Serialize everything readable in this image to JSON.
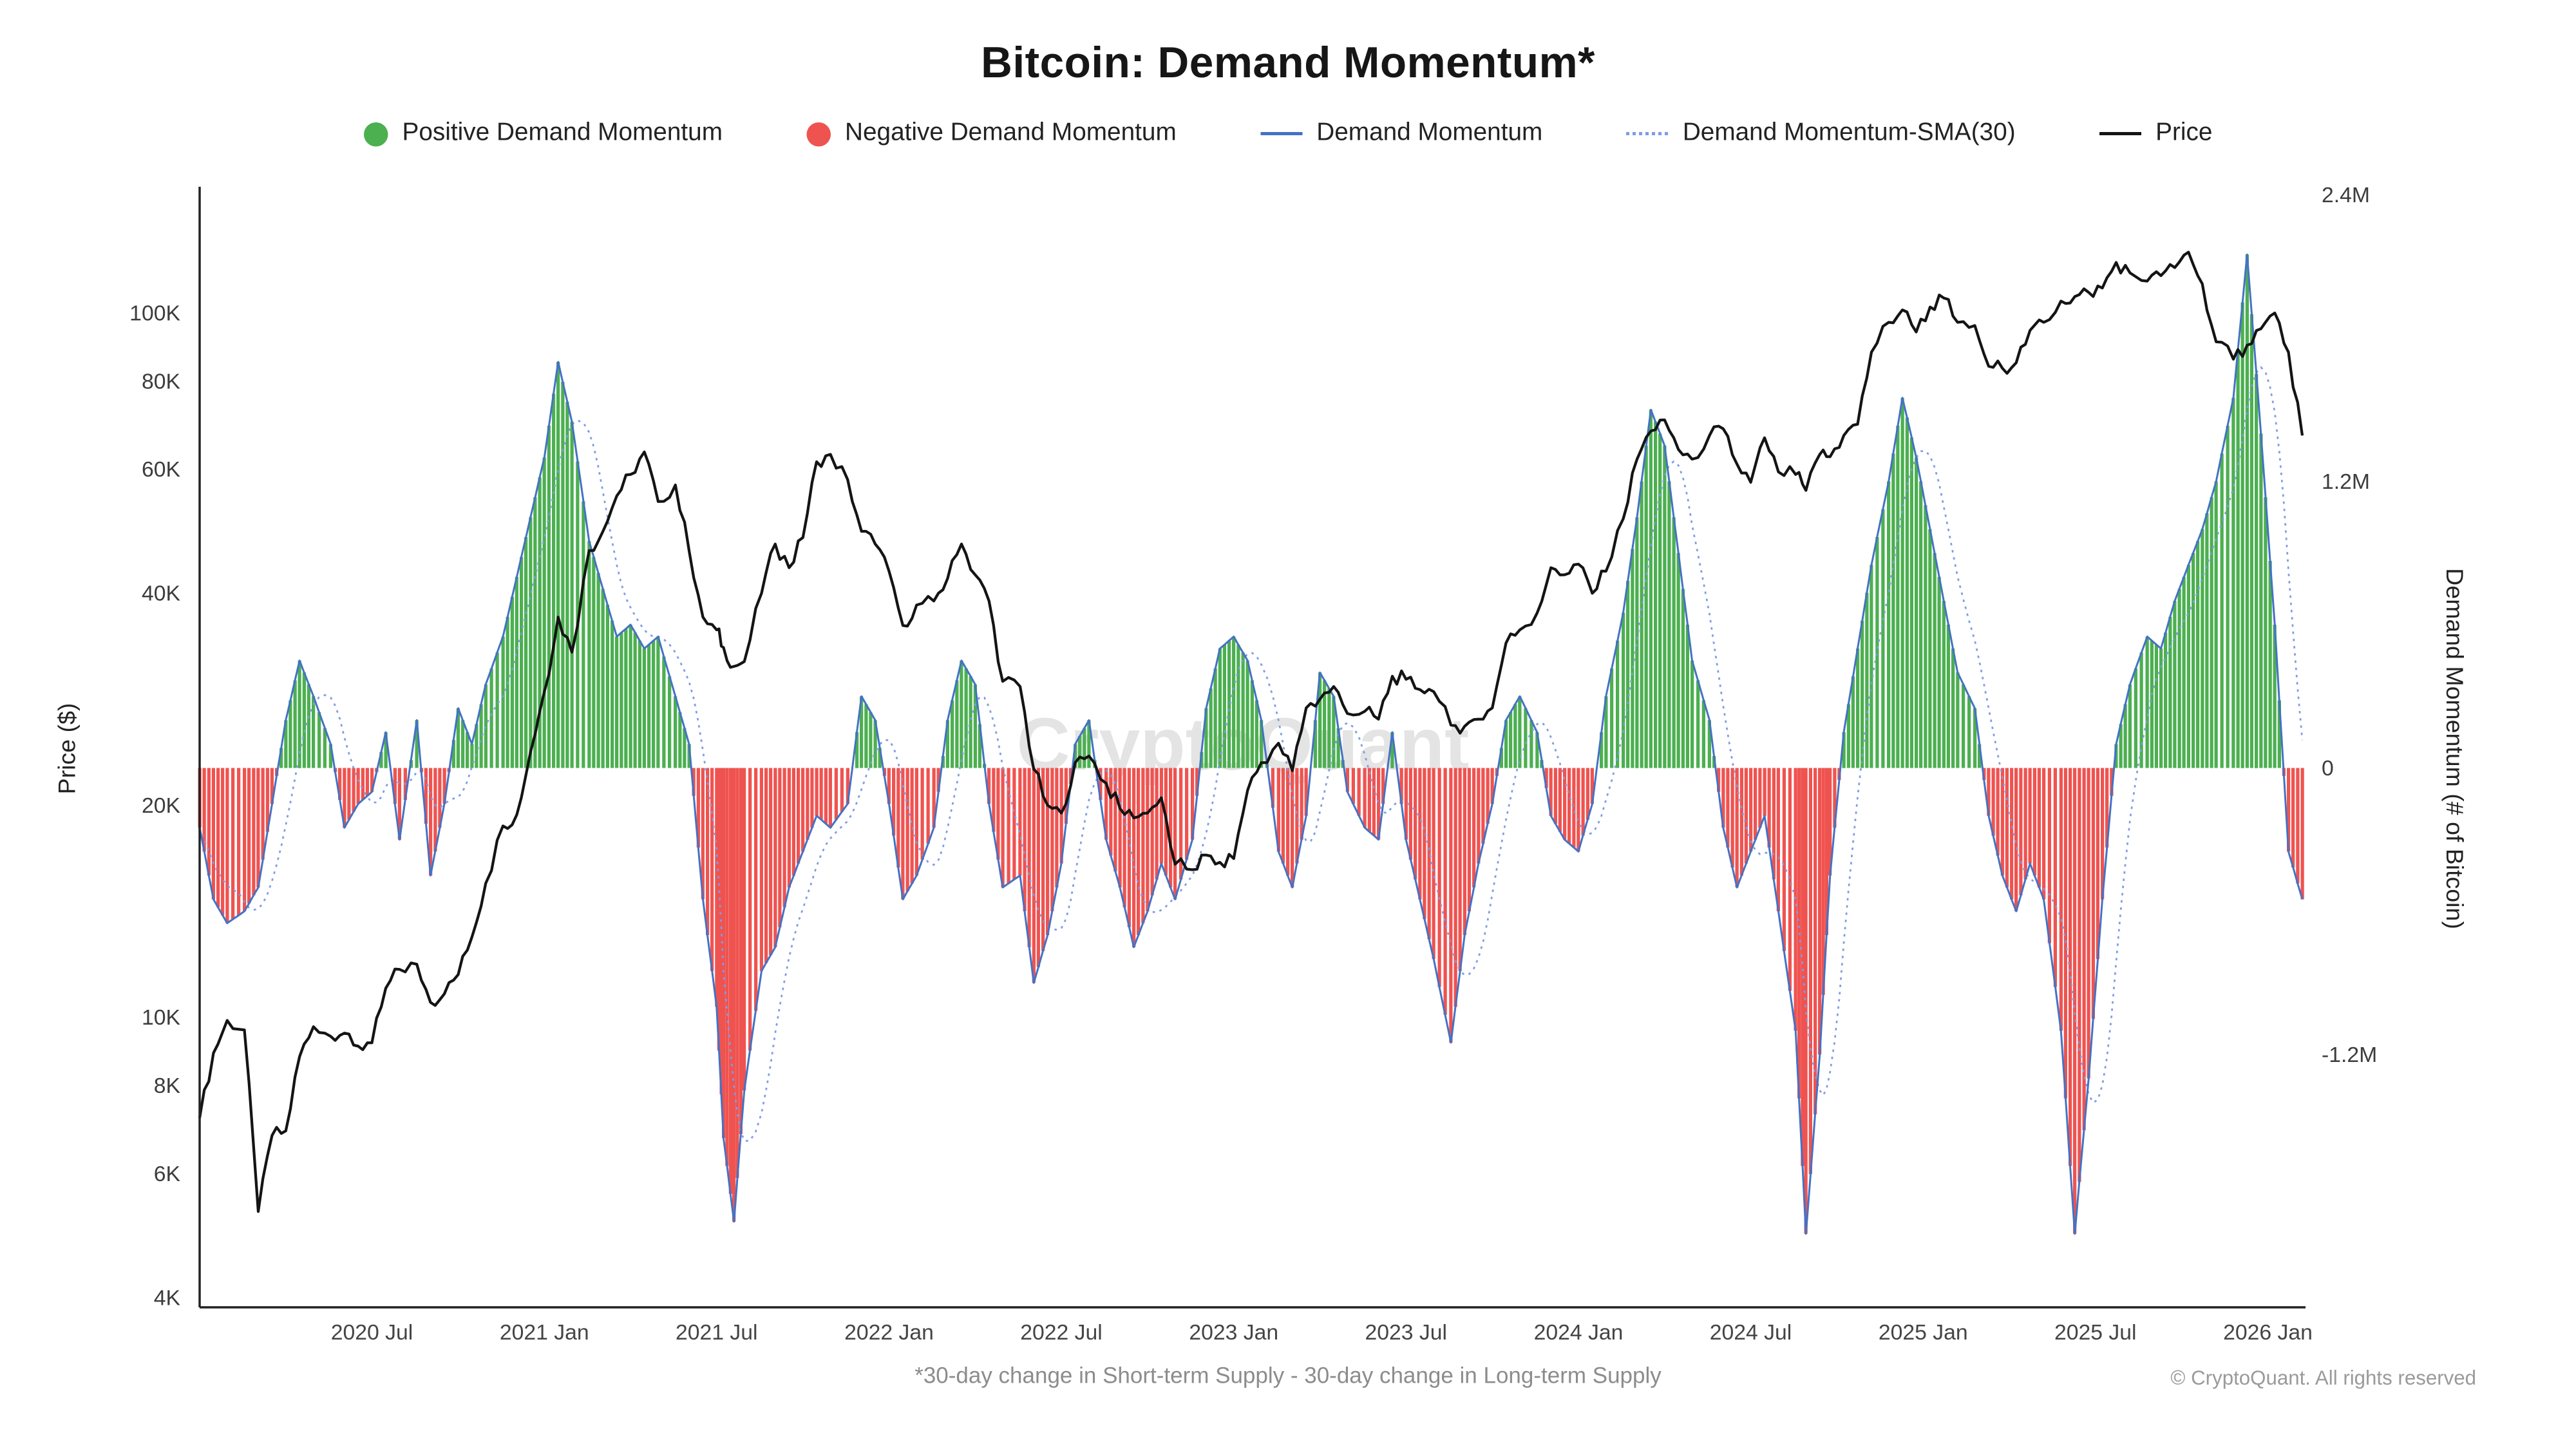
{
  "title": "Bitcoin: Demand Momentum*",
  "footnote": "*30-day change in Short-term Supply - 30-day change in Long-term Supply",
  "copyright": "© CryptoQuant. All rights reserved",
  "watermark": "CryptoQuant",
  "legend": [
    {
      "label": "Positive Demand Momentum",
      "marker": "green-dot"
    },
    {
      "label": "Negative Demand Momentum",
      "marker": "red-dot"
    },
    {
      "label": "Demand Momentum",
      "marker": "blue-line"
    },
    {
      "label": "Demand Momentum-SMA(30)",
      "marker": "blue-dotted-line"
    },
    {
      "label": "Price",
      "marker": "black-line"
    }
  ],
  "chart_data": {
    "type": [
      "bar",
      "line"
    ],
    "title": "Bitcoin: Demand Momentum*",
    "x_range_years": [
      2020.0,
      2026.12
    ],
    "x_ticks": [
      {
        "t": 2020.5,
        "label": "2020 Jul"
      },
      {
        "t": 2021.0,
        "label": "2021 Jan"
      },
      {
        "t": 2021.5,
        "label": "2021 Jul"
      },
      {
        "t": 2022.0,
        "label": "2022 Jan"
      },
      {
        "t": 2022.5,
        "label": "2022 Jul"
      },
      {
        "t": 2023.0,
        "label": "2023 Jan"
      },
      {
        "t": 2023.5,
        "label": "2023 Jul"
      },
      {
        "t": 2024.0,
        "label": "2024 Jan"
      },
      {
        "t": 2024.5,
        "label": "2024 Jul"
      },
      {
        "t": 2025.0,
        "label": "2025 Jan"
      },
      {
        "t": 2025.5,
        "label": "2025 Jul"
      },
      {
        "t": 2026.0,
        "label": "2026 Jan"
      }
    ],
    "price_axis": {
      "label": "Price ($)",
      "scale": "log",
      "range_usd": [
        4000,
        143000
      ],
      "ticks": [
        {
          "v": 100,
          "label": "100K"
        },
        {
          "v": 80,
          "label": "80K"
        },
        {
          "v": 60,
          "label": "60K"
        },
        {
          "v": 40,
          "label": "40K"
        },
        {
          "v": 20,
          "label": "20K"
        },
        {
          "v": 10,
          "label": "10K"
        },
        {
          "v": 8,
          "label": "8K"
        },
        {
          "v": 6,
          "label": "6K"
        },
        {
          "v": 4,
          "label": "4K"
        }
      ]
    },
    "momentum_axis": {
      "label": "Demand Momentum (# of Bitcoin)",
      "scale": "linear",
      "range_btc": [
        -2260000,
        2400000
      ],
      "ticks": [
        {
          "v": 2.4,
          "label": "2.4M"
        },
        {
          "v": 1.2,
          "label": "1.2M"
        },
        {
          "v": 0,
          "label": "0"
        },
        {
          "v": -1.2,
          "label": "-1.2M"
        }
      ]
    },
    "sma": {
      "label": "Demand Momentum-SMA(30)",
      "derivation": "30-day simple moving average of the Demand Momentum series"
    },
    "colors": {
      "positive": "#4caf50",
      "negative": "#ef5350",
      "momentum": "#4472c4",
      "sma": "#7f9ce8",
      "price": "#141414",
      "watermark": "#e4e4e4",
      "axis": "#222222",
      "tick_text": "#3c3c3c"
    },
    "series_units": {
      "t": "decimal year",
      "momentum": "millions of BTC",
      "price": "thousands of USD"
    },
    "points": [
      [
        2020.0,
        -0.25,
        7.2
      ],
      [
        2020.04,
        -0.55,
        8.9
      ],
      [
        2020.08,
        -0.65,
        9.9
      ],
      [
        2020.13,
        -0.6,
        9.6
      ],
      [
        2020.17,
        -0.5,
        5.3
      ],
      [
        2020.21,
        -0.15,
        6.8
      ],
      [
        2020.25,
        0.2,
        6.9
      ],
      [
        2020.29,
        0.45,
        8.8
      ],
      [
        2020.33,
        0.3,
        9.7
      ],
      [
        2020.38,
        0.1,
        9.4
      ],
      [
        2020.42,
        -0.25,
        9.5
      ],
      [
        2020.46,
        -0.15,
        9.1
      ],
      [
        2020.5,
        -0.1,
        9.2
      ],
      [
        2020.54,
        0.15,
        11.0
      ],
      [
        2020.58,
        -0.3,
        11.7
      ],
      [
        2020.63,
        0.2,
        11.9
      ],
      [
        2020.67,
        -0.45,
        10.5
      ],
      [
        2020.71,
        -0.15,
        10.8
      ],
      [
        2020.75,
        0.25,
        11.5
      ],
      [
        2020.79,
        0.1,
        13.0
      ],
      [
        2020.83,
        0.35,
        15.5
      ],
      [
        2020.88,
        0.55,
        18.7
      ],
      [
        2020.92,
        0.8,
        19.4
      ],
      [
        2020.96,
        1.05,
        23.8
      ],
      [
        2021.0,
        1.3,
        29.0
      ],
      [
        2021.04,
        1.7,
        37.0
      ],
      [
        2021.08,
        1.45,
        33.0
      ],
      [
        2021.13,
        0.95,
        46.0
      ],
      [
        2021.17,
        0.75,
        49.0
      ],
      [
        2021.21,
        0.55,
        55.0
      ],
      [
        2021.25,
        0.6,
        59.0
      ],
      [
        2021.29,
        0.5,
        63.5
      ],
      [
        2021.33,
        0.55,
        54.0
      ],
      [
        2021.38,
        0.3,
        57.0
      ],
      [
        2021.42,
        0.1,
        46.0
      ],
      [
        2021.46,
        -0.55,
        37.0
      ],
      [
        2021.5,
        -1.0,
        35.5
      ],
      [
        2021.52,
        -1.55,
        33.5
      ],
      [
        2021.55,
        -1.9,
        31.5
      ],
      [
        2021.58,
        -1.35,
        32.0
      ],
      [
        2021.63,
        -0.85,
        40.0
      ],
      [
        2021.67,
        -0.75,
        47.0
      ],
      [
        2021.71,
        -0.5,
        43.5
      ],
      [
        2021.75,
        -0.35,
        48.0
      ],
      [
        2021.79,
        -0.2,
        61.5
      ],
      [
        2021.83,
        -0.25,
        63.0
      ],
      [
        2021.88,
        -0.15,
        58.0
      ],
      [
        2021.92,
        0.3,
        49.0
      ],
      [
        2021.96,
        0.2,
        47.0
      ],
      [
        2022.0,
        -0.15,
        43.0
      ],
      [
        2022.04,
        -0.55,
        36.0
      ],
      [
        2022.08,
        -0.45,
        38.5
      ],
      [
        2022.13,
        -0.25,
        39.0
      ],
      [
        2022.17,
        0.2,
        42.0
      ],
      [
        2022.21,
        0.45,
        47.0
      ],
      [
        2022.25,
        0.35,
        42.5
      ],
      [
        2022.29,
        -0.15,
        39.0
      ],
      [
        2022.33,
        -0.5,
        30.0
      ],
      [
        2022.38,
        -0.45,
        29.5
      ],
      [
        2022.42,
        -0.9,
        22.5
      ],
      [
        2022.46,
        -0.7,
        20.0
      ],
      [
        2022.5,
        -0.4,
        19.5
      ],
      [
        2022.54,
        0.1,
        23.0
      ],
      [
        2022.58,
        0.2,
        23.5
      ],
      [
        2022.63,
        -0.3,
        21.5
      ],
      [
        2022.67,
        -0.5,
        19.8
      ],
      [
        2022.71,
        -0.75,
        19.2
      ],
      [
        2022.75,
        -0.6,
        19.5
      ],
      [
        2022.79,
        -0.4,
        20.5
      ],
      [
        2022.83,
        -0.55,
        16.5
      ],
      [
        2022.88,
        -0.3,
        16.2
      ],
      [
        2022.92,
        0.25,
        17.0
      ],
      [
        2022.96,
        0.5,
        16.6
      ],
      [
        2023.0,
        0.55,
        16.8
      ],
      [
        2023.04,
        0.45,
        21.0
      ],
      [
        2023.08,
        0.2,
        23.0
      ],
      [
        2023.13,
        -0.35,
        24.5
      ],
      [
        2023.17,
        -0.5,
        22.4
      ],
      [
        2023.21,
        -0.2,
        27.5
      ],
      [
        2023.25,
        0.4,
        28.3
      ],
      [
        2023.29,
        0.3,
        29.5
      ],
      [
        2023.33,
        -0.1,
        27.0
      ],
      [
        2023.38,
        -0.25,
        27.2
      ],
      [
        2023.42,
        -0.3,
        26.5
      ],
      [
        2023.46,
        0.15,
        30.5
      ],
      [
        2023.5,
        -0.3,
        30.2
      ],
      [
        2023.54,
        -0.55,
        29.2
      ],
      [
        2023.58,
        -0.8,
        29.0
      ],
      [
        2023.63,
        -1.15,
        26.0
      ],
      [
        2023.67,
        -0.7,
        25.9
      ],
      [
        2023.71,
        -0.4,
        26.5
      ],
      [
        2023.75,
        -0.15,
        27.5
      ],
      [
        2023.79,
        0.2,
        34.0
      ],
      [
        2023.83,
        0.3,
        35.5
      ],
      [
        2023.88,
        0.15,
        37.5
      ],
      [
        2023.92,
        -0.2,
        43.5
      ],
      [
        2023.96,
        -0.3,
        42.5
      ],
      [
        2024.0,
        -0.35,
        44.0
      ],
      [
        2024.04,
        -0.15,
        40.0
      ],
      [
        2024.08,
        0.3,
        43.0
      ],
      [
        2024.13,
        0.65,
        51.0
      ],
      [
        2024.17,
        1.05,
        62.0
      ],
      [
        2024.21,
        1.5,
        68.0
      ],
      [
        2024.25,
        1.35,
        70.5
      ],
      [
        2024.29,
        0.9,
        64.0
      ],
      [
        2024.33,
        0.45,
        62.0
      ],
      [
        2024.38,
        0.2,
        67.0
      ],
      [
        2024.42,
        -0.25,
        68.5
      ],
      [
        2024.46,
        -0.5,
        61.0
      ],
      [
        2024.5,
        -0.35,
        57.5
      ],
      [
        2024.54,
        -0.2,
        66.5
      ],
      [
        2024.58,
        -0.6,
        59.5
      ],
      [
        2024.63,
        -1.1,
        59.0
      ],
      [
        2024.66,
        -1.95,
        56.0
      ],
      [
        2024.7,
        -1.2,
        63.0
      ],
      [
        2024.73,
        -0.45,
        62.5
      ],
      [
        2024.77,
        0.15,
        67.0
      ],
      [
        2024.81,
        0.5,
        69.5
      ],
      [
        2024.85,
        0.85,
        88.0
      ],
      [
        2024.9,
        1.2,
        97.0
      ],
      [
        2024.94,
        1.55,
        101.0
      ],
      [
        2024.98,
        1.3,
        94.0
      ],
      [
        2025.02,
        1.0,
        102.0
      ],
      [
        2025.06,
        0.7,
        105.0
      ],
      [
        2025.1,
        0.4,
        97.0
      ],
      [
        2025.15,
        0.25,
        96.0
      ],
      [
        2025.19,
        -0.2,
        84.0
      ],
      [
        2025.23,
        -0.45,
        83.5
      ],
      [
        2025.27,
        -0.6,
        85.0
      ],
      [
        2025.31,
        -0.4,
        94.5
      ],
      [
        2025.35,
        -0.55,
        97.0
      ],
      [
        2025.4,
        -1.1,
        104.0
      ],
      [
        2025.44,
        -1.95,
        105.5
      ],
      [
        2025.48,
        -1.3,
        107.0
      ],
      [
        2025.52,
        -0.55,
        108.5
      ],
      [
        2025.56,
        0.1,
        118.0
      ],
      [
        2025.6,
        0.35,
        114.0
      ],
      [
        2025.65,
        0.55,
        111.0
      ],
      [
        2025.69,
        0.5,
        113.0
      ],
      [
        2025.73,
        0.7,
        116.0
      ],
      [
        2025.77,
        0.85,
        122.0
      ],
      [
        2025.81,
        1.0,
        110.0
      ],
      [
        2025.85,
        1.2,
        91.0
      ],
      [
        2025.9,
        1.55,
        86.0
      ],
      [
        2025.94,
        2.15,
        90.0
      ],
      [
        2025.98,
        1.4,
        95.0
      ],
      [
        2026.02,
        0.6,
        100.0
      ],
      [
        2026.06,
        -0.35,
        88.0
      ],
      [
        2026.1,
        -0.55,
        67.0
      ]
    ]
  }
}
